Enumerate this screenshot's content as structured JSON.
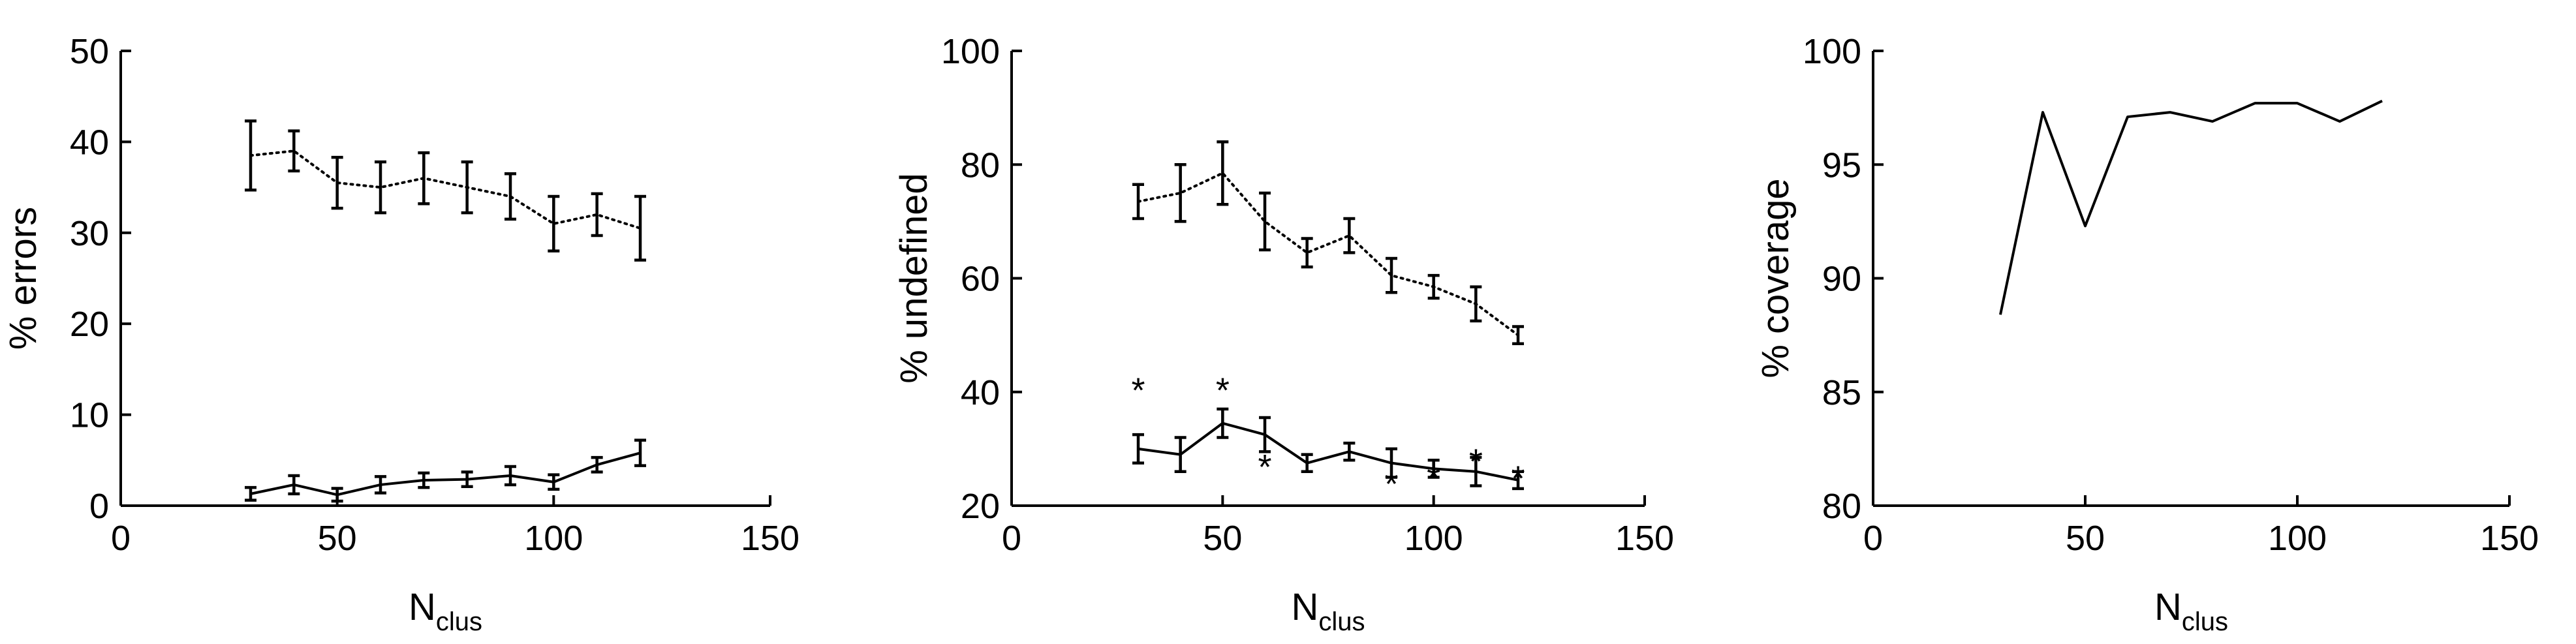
{
  "chart_data": [
    {
      "type": "line",
      "xlabel": "N",
      "xlabel_subscript": "clus",
      "ylabel": "% errors",
      "xlim": [
        0,
        150
      ],
      "ylim": [
        0,
        50
      ],
      "xticks": [
        "0",
        "50",
        "100",
        "150"
      ],
      "yticks": [
        "0",
        "10",
        "20",
        "30",
        "40",
        "50"
      ],
      "grid": false,
      "x": [
        30,
        40,
        50,
        60,
        70,
        80,
        90,
        100,
        110,
        120
      ],
      "series": [
        {
          "style": "dotted",
          "values": [
            38.5,
            39.0,
            35.5,
            35.0,
            36.0,
            35.0,
            34.0,
            31.0,
            32.0,
            30.5
          ],
          "error": [
            3.8,
            2.2,
            2.8,
            2.8,
            2.8,
            2.8,
            2.5,
            3.0,
            2.3,
            3.5
          ]
        },
        {
          "style": "solid",
          "values": [
            1.3,
            2.3,
            1.2,
            2.3,
            2.8,
            2.9,
            3.3,
            2.6,
            4.5,
            5.8
          ],
          "error": [
            0.7,
            1.0,
            0.7,
            0.9,
            0.8,
            0.8,
            1.0,
            0.8,
            0.8,
            1.4
          ]
        }
      ]
    },
    {
      "type": "line",
      "xlabel": "N",
      "xlabel_subscript": "clus",
      "ylabel": "% undefined",
      "xlim": [
        0,
        150
      ],
      "ylim": [
        20,
        100
      ],
      "xticks": [
        "0",
        "50",
        "100",
        "150"
      ],
      "yticks": [
        "20",
        "40",
        "60",
        "80",
        "100"
      ],
      "grid": false,
      "x": [
        30,
        40,
        50,
        60,
        70,
        80,
        90,
        100,
        110,
        120
      ],
      "series": [
        {
          "style": "dotted",
          "values": [
            73.5,
            75.0,
            78.5,
            70.0,
            64.5,
            67.5,
            60.5,
            58.5,
            55.5,
            50.0
          ],
          "error": [
            3.0,
            5.0,
            5.5,
            5.0,
            2.5,
            3.0,
            3.0,
            2.0,
            3.0,
            1.5
          ]
        },
        {
          "style": "solid",
          "values": [
            30.0,
            29.0,
            34.5,
            32.5,
            27.5,
            29.5,
            27.5,
            26.5,
            26.0,
            24.5
          ],
          "error": [
            2.5,
            3.0,
            2.5,
            3.0,
            1.5,
            1.5,
            2.5,
            1.5,
            2.5,
            1.5
          ]
        }
      ],
      "markers": {
        "symbol": "*",
        "points": [
          [
            30,
            40.5
          ],
          [
            50,
            40.5
          ],
          [
            60,
            27.0
          ],
          [
            90,
            24.0
          ],
          [
            100,
            25.0
          ],
          [
            110,
            28.0
          ],
          [
            120,
            25.0
          ]
        ]
      }
    },
    {
      "type": "line",
      "xlabel": "N",
      "xlabel_subscript": "clus",
      "ylabel": "% coverage",
      "xlim": [
        0,
        150
      ],
      "ylim": [
        80,
        100
      ],
      "xticks": [
        "0",
        "50",
        "100",
        "150"
      ],
      "yticks": [
        "80",
        "85",
        "90",
        "95",
        "100"
      ],
      "grid": false,
      "x": [
        30,
        40,
        50,
        60,
        70,
        80,
        90,
        100,
        110,
        120
      ],
      "series": [
        {
          "style": "solid",
          "values": [
            88.4,
            97.3,
            92.3,
            97.1,
            97.3,
            96.9,
            97.7,
            97.7,
            96.9,
            97.8
          ]
        }
      ]
    }
  ]
}
